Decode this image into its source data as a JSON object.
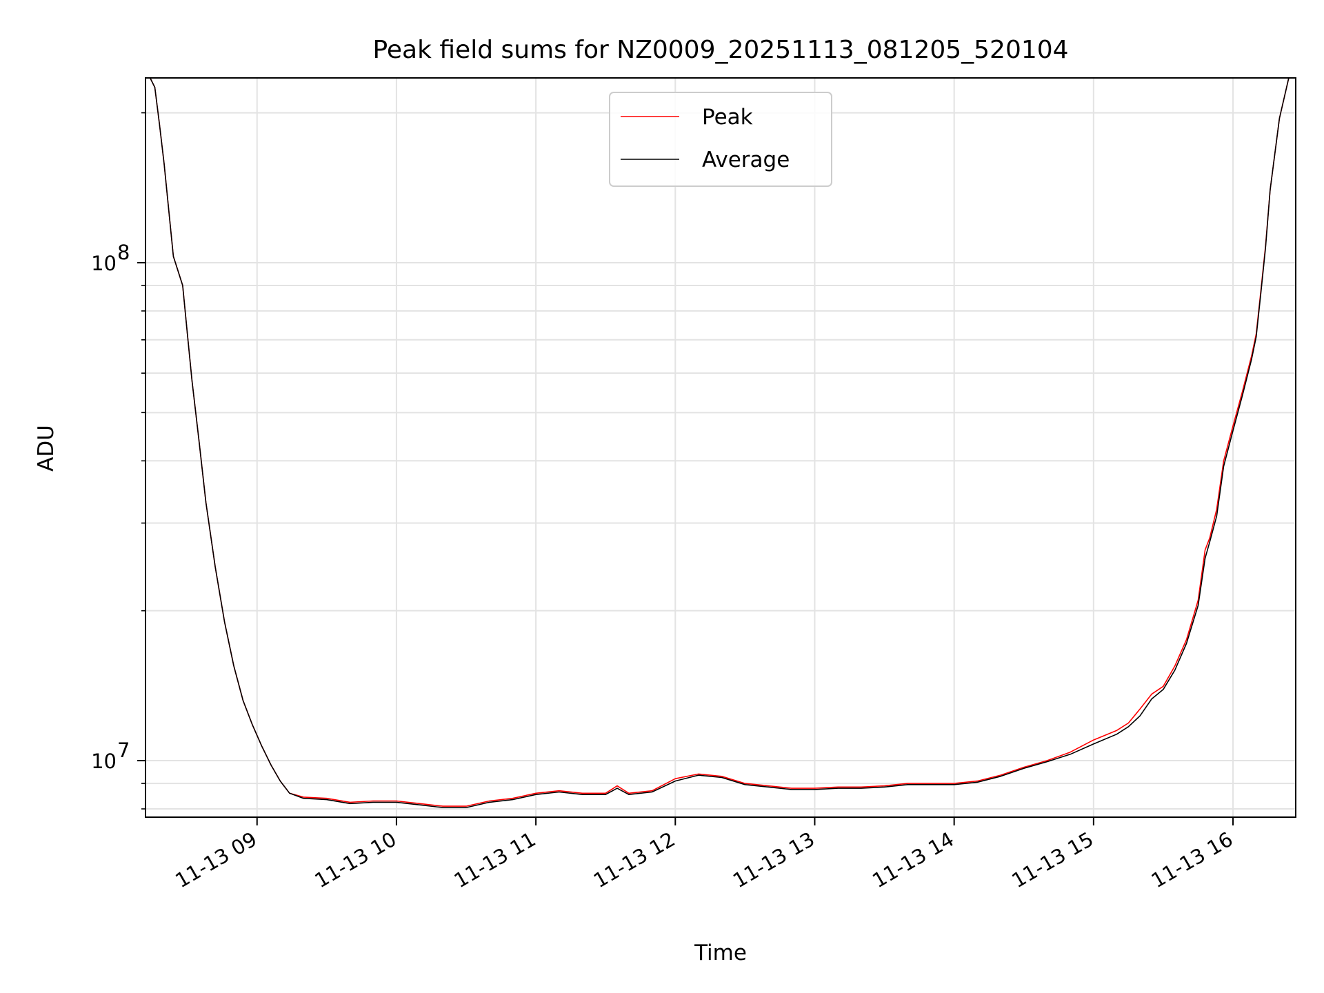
{
  "chart_data": {
    "type": "line",
    "title": "Peak field sums for NZ0009_20251113_081205_520104",
    "xlabel": "Time",
    "ylabel": "ADU",
    "y_scale": "log",
    "ylim": [
      7700000,
      235000000
    ],
    "xlim": [
      "2025-11-13 08:12",
      "2025-11-13 16:27"
    ],
    "x_tick_labels": [
      "11-13 09",
      "11-13 10",
      "11-13 11",
      "11-13 12",
      "11-13 13",
      "11-13 14",
      "11-13 15",
      "11-13 16"
    ],
    "x_tick_values": [
      "2025-11-13 09:00",
      "2025-11-13 10:00",
      "2025-11-13 11:00",
      "2025-11-13 12:00",
      "2025-11-13 13:00",
      "2025-11-13 14:00",
      "2025-11-13 15:00",
      "2025-11-13 16:00"
    ],
    "y_tick_labels": [
      {
        "base": "10",
        "exp": "7",
        "value": 10000000
      },
      {
        "base": "10",
        "exp": "8",
        "value": 100000000
      }
    ],
    "y_minor_ticks": [
      8000000,
      9000000,
      20000000,
      30000000,
      40000000,
      50000000,
      60000000,
      70000000,
      80000000,
      90000000,
      200000000
    ],
    "grid": true,
    "legend_position": "top-center",
    "series": [
      {
        "name": "Peak",
        "color": "#ff0000",
        "x": [
          "08:12",
          "08:14",
          "08:16",
          "08:18",
          "08:20",
          "08:24",
          "08:28",
          "08:30",
          "08:32",
          "08:35",
          "08:38",
          "08:42",
          "08:46",
          "08:50",
          "08:54",
          "08:58",
          "09:02",
          "09:06",
          "09:10",
          "09:14",
          "09:20",
          "09:30",
          "09:40",
          "09:50",
          "10:00",
          "10:10",
          "10:20",
          "10:30",
          "10:40",
          "10:50",
          "11:00",
          "11:10",
          "11:20",
          "11:30",
          "11:35",
          "11:40",
          "11:50",
          "12:00",
          "12:10",
          "12:20",
          "12:30",
          "12:40",
          "12:50",
          "13:00",
          "13:10",
          "13:20",
          "13:30",
          "13:40",
          "13:50",
          "14:00",
          "14:10",
          "14:20",
          "14:30",
          "14:40",
          "14:50",
          "15:00",
          "15:10",
          "15:15",
          "15:20",
          "15:25",
          "15:30",
          "15:35",
          "15:40",
          "15:45",
          "15:48",
          "15:50",
          "15:53",
          "15:56",
          "16:00",
          "16:04",
          "16:08",
          "16:10",
          "16:12",
          "16:14",
          "16:16",
          "16:20",
          "16:24",
          "16:27"
        ],
        "y": [
          235000000,
          235000000,
          225000000,
          190000000,
          158000000,
          103000000,
          90000000,
          72000000,
          58000000,
          44000000,
          33000000,
          24500000,
          19000000,
          15500000,
          13200000,
          11800000,
          10700000,
          9800000,
          9100000,
          8600000,
          8450000,
          8400000,
          8250000,
          8300000,
          8300000,
          8200000,
          8100000,
          8100000,
          8300000,
          8400000,
          8600000,
          8700000,
          8600000,
          8600000,
          8900000,
          8600000,
          8700000,
          9200000,
          9400000,
          9300000,
          9000000,
          8900000,
          8800000,
          8800000,
          8850000,
          8850000,
          8900000,
          9000000,
          9000000,
          9000000,
          9100000,
          9350000,
          9700000,
          10000000,
          10400000,
          11000000,
          11500000,
          11900000,
          12700000,
          13600000,
          14100000,
          15500000,
          17500000,
          21000000,
          26500000,
          28000000,
          32000000,
          40000000,
          47000000,
          55000000,
          65000000,
          72000000,
          88000000,
          108000000,
          140000000,
          195000000,
          235000000,
          235000000
        ]
      },
      {
        "name": "Average",
        "color": "#000000",
        "x": [
          "08:12",
          "08:14",
          "08:16",
          "08:18",
          "08:20",
          "08:24",
          "08:28",
          "08:30",
          "08:32",
          "08:35",
          "08:38",
          "08:42",
          "08:46",
          "08:50",
          "08:54",
          "08:58",
          "09:02",
          "09:06",
          "09:10",
          "09:14",
          "09:20",
          "09:30",
          "09:40",
          "09:50",
          "10:00",
          "10:10",
          "10:20",
          "10:30",
          "10:40",
          "10:50",
          "11:00",
          "11:10",
          "11:20",
          "11:30",
          "11:35",
          "11:40",
          "11:50",
          "12:00",
          "12:10",
          "12:20",
          "12:30",
          "12:40",
          "12:50",
          "13:00",
          "13:10",
          "13:20",
          "13:30",
          "13:40",
          "13:50",
          "14:00",
          "14:10",
          "14:20",
          "14:30",
          "14:40",
          "14:50",
          "15:00",
          "15:10",
          "15:15",
          "15:20",
          "15:25",
          "15:30",
          "15:35",
          "15:40",
          "15:45",
          "15:48",
          "15:50",
          "15:53",
          "15:56",
          "16:00",
          "16:04",
          "16:08",
          "16:10",
          "16:12",
          "16:14",
          "16:16",
          "16:20",
          "16:24",
          "16:27"
        ],
        "y": [
          235000000,
          235000000,
          225000000,
          190000000,
          158000000,
          103000000,
          90000000,
          72000000,
          58000000,
          44000000,
          33000000,
          24500000,
          19000000,
          15500000,
          13200000,
          11800000,
          10700000,
          9800000,
          9100000,
          8600000,
          8400000,
          8350000,
          8200000,
          8250000,
          8250000,
          8150000,
          8050000,
          8050000,
          8250000,
          8350000,
          8550000,
          8650000,
          8550000,
          8550000,
          8800000,
          8550000,
          8650000,
          9100000,
          9350000,
          9250000,
          8950000,
          8850000,
          8750000,
          8750000,
          8800000,
          8800000,
          8850000,
          8950000,
          8950000,
          8950000,
          9050000,
          9300000,
          9650000,
          9950000,
          10300000,
          10800000,
          11300000,
          11700000,
          12300000,
          13300000,
          13900000,
          15200000,
          17200000,
          20500000,
          25500000,
          27500000,
          31000000,
          39000000,
          46000000,
          54000000,
          64000000,
          71000000,
          87000000,
          107000000,
          140000000,
          195000000,
          235000000,
          235000000
        ]
      }
    ]
  }
}
